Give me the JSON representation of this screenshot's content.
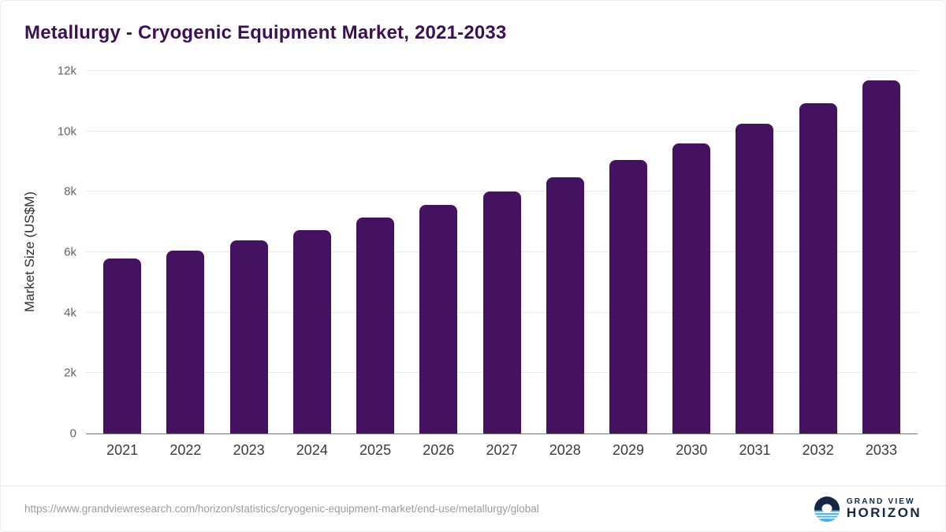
{
  "header": {
    "title": "Metallurgy - Cryogenic Equipment Market, 2021-2033"
  },
  "chart_data": {
    "type": "bar",
    "title": "Metallurgy - Cryogenic Equipment Market, 2021-2033",
    "categories": [
      "2021",
      "2022",
      "2023",
      "2024",
      "2025",
      "2026",
      "2027",
      "2028",
      "2029",
      "2030",
      "2031",
      "2032",
      "2033"
    ],
    "values": [
      5780,
      6060,
      6400,
      6740,
      7140,
      7560,
      8010,
      8490,
      9040,
      9610,
      10250,
      10930,
      11690
    ],
    "xlabel": "",
    "ylabel": "Market Size (US$M)",
    "ylim": [
      0,
      12000
    ],
    "yticks": [
      {
        "value": 0,
        "label": "0"
      },
      {
        "value": 2000,
        "label": "2k"
      },
      {
        "value": 4000,
        "label": "4k"
      },
      {
        "value": 6000,
        "label": "6k"
      },
      {
        "value": 8000,
        "label": "8k"
      },
      {
        "value": 10000,
        "label": "10k"
      },
      {
        "value": 12000,
        "label": "12k"
      }
    ],
    "grid": "horizontal",
    "legend": "none"
  },
  "colors": {
    "title": "#3c1053",
    "bar": "#451260",
    "gridline": "#ebebeb",
    "axis_line": "#757575",
    "tick_label": "#636363",
    "x_label": "#3a3a3a",
    "logo_navy": "#152744",
    "logo_blue": "#45b5e8"
  },
  "footer": {
    "source_url": "https://www.grandviewresearch.com/horizon/statistics/cryogenic-equipment-market/end-use/metallurgy/global",
    "logo": {
      "line1": "GRAND VIEW",
      "line2": "HORIZON"
    }
  }
}
